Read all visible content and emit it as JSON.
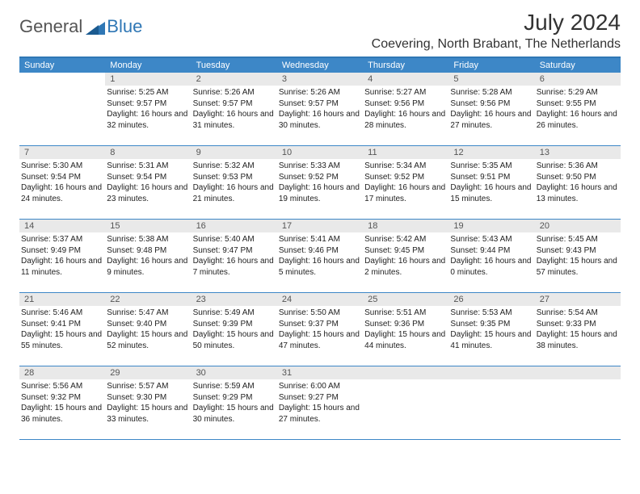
{
  "logo": {
    "general": "General",
    "blue": "Blue"
  },
  "title": {
    "month": "July 2024",
    "location": "Coevering, North Brabant, The Netherlands"
  },
  "colors": {
    "header_bg": "#3d87c7",
    "border": "#2f77b5",
    "daynum_bg": "#e9e9e9",
    "text": "#222222",
    "logo_gray": "#555555",
    "logo_blue": "#2f77b5"
  },
  "day_headers": [
    "Sunday",
    "Monday",
    "Tuesday",
    "Wednesday",
    "Thursday",
    "Friday",
    "Saturday"
  ],
  "weeks": [
    [
      {
        "num": "",
        "sunrise": "",
        "sunset": "",
        "daylight": ""
      },
      {
        "num": "1",
        "sunrise": "Sunrise: 5:25 AM",
        "sunset": "Sunset: 9:57 PM",
        "daylight": "Daylight: 16 hours and 32 minutes."
      },
      {
        "num": "2",
        "sunrise": "Sunrise: 5:26 AM",
        "sunset": "Sunset: 9:57 PM",
        "daylight": "Daylight: 16 hours and 31 minutes."
      },
      {
        "num": "3",
        "sunrise": "Sunrise: 5:26 AM",
        "sunset": "Sunset: 9:57 PM",
        "daylight": "Daylight: 16 hours and 30 minutes."
      },
      {
        "num": "4",
        "sunrise": "Sunrise: 5:27 AM",
        "sunset": "Sunset: 9:56 PM",
        "daylight": "Daylight: 16 hours and 28 minutes."
      },
      {
        "num": "5",
        "sunrise": "Sunrise: 5:28 AM",
        "sunset": "Sunset: 9:56 PM",
        "daylight": "Daylight: 16 hours and 27 minutes."
      },
      {
        "num": "6",
        "sunrise": "Sunrise: 5:29 AM",
        "sunset": "Sunset: 9:55 PM",
        "daylight": "Daylight: 16 hours and 26 minutes."
      }
    ],
    [
      {
        "num": "7",
        "sunrise": "Sunrise: 5:30 AM",
        "sunset": "Sunset: 9:54 PM",
        "daylight": "Daylight: 16 hours and 24 minutes."
      },
      {
        "num": "8",
        "sunrise": "Sunrise: 5:31 AM",
        "sunset": "Sunset: 9:54 PM",
        "daylight": "Daylight: 16 hours and 23 minutes."
      },
      {
        "num": "9",
        "sunrise": "Sunrise: 5:32 AM",
        "sunset": "Sunset: 9:53 PM",
        "daylight": "Daylight: 16 hours and 21 minutes."
      },
      {
        "num": "10",
        "sunrise": "Sunrise: 5:33 AM",
        "sunset": "Sunset: 9:52 PM",
        "daylight": "Daylight: 16 hours and 19 minutes."
      },
      {
        "num": "11",
        "sunrise": "Sunrise: 5:34 AM",
        "sunset": "Sunset: 9:52 PM",
        "daylight": "Daylight: 16 hours and 17 minutes."
      },
      {
        "num": "12",
        "sunrise": "Sunrise: 5:35 AM",
        "sunset": "Sunset: 9:51 PM",
        "daylight": "Daylight: 16 hours and 15 minutes."
      },
      {
        "num": "13",
        "sunrise": "Sunrise: 5:36 AM",
        "sunset": "Sunset: 9:50 PM",
        "daylight": "Daylight: 16 hours and 13 minutes."
      }
    ],
    [
      {
        "num": "14",
        "sunrise": "Sunrise: 5:37 AM",
        "sunset": "Sunset: 9:49 PM",
        "daylight": "Daylight: 16 hours and 11 minutes."
      },
      {
        "num": "15",
        "sunrise": "Sunrise: 5:38 AM",
        "sunset": "Sunset: 9:48 PM",
        "daylight": "Daylight: 16 hours and 9 minutes."
      },
      {
        "num": "16",
        "sunrise": "Sunrise: 5:40 AM",
        "sunset": "Sunset: 9:47 PM",
        "daylight": "Daylight: 16 hours and 7 minutes."
      },
      {
        "num": "17",
        "sunrise": "Sunrise: 5:41 AM",
        "sunset": "Sunset: 9:46 PM",
        "daylight": "Daylight: 16 hours and 5 minutes."
      },
      {
        "num": "18",
        "sunrise": "Sunrise: 5:42 AM",
        "sunset": "Sunset: 9:45 PM",
        "daylight": "Daylight: 16 hours and 2 minutes."
      },
      {
        "num": "19",
        "sunrise": "Sunrise: 5:43 AM",
        "sunset": "Sunset: 9:44 PM",
        "daylight": "Daylight: 16 hours and 0 minutes."
      },
      {
        "num": "20",
        "sunrise": "Sunrise: 5:45 AM",
        "sunset": "Sunset: 9:43 PM",
        "daylight": "Daylight: 15 hours and 57 minutes."
      }
    ],
    [
      {
        "num": "21",
        "sunrise": "Sunrise: 5:46 AM",
        "sunset": "Sunset: 9:41 PM",
        "daylight": "Daylight: 15 hours and 55 minutes."
      },
      {
        "num": "22",
        "sunrise": "Sunrise: 5:47 AM",
        "sunset": "Sunset: 9:40 PM",
        "daylight": "Daylight: 15 hours and 52 minutes."
      },
      {
        "num": "23",
        "sunrise": "Sunrise: 5:49 AM",
        "sunset": "Sunset: 9:39 PM",
        "daylight": "Daylight: 15 hours and 50 minutes."
      },
      {
        "num": "24",
        "sunrise": "Sunrise: 5:50 AM",
        "sunset": "Sunset: 9:37 PM",
        "daylight": "Daylight: 15 hours and 47 minutes."
      },
      {
        "num": "25",
        "sunrise": "Sunrise: 5:51 AM",
        "sunset": "Sunset: 9:36 PM",
        "daylight": "Daylight: 15 hours and 44 minutes."
      },
      {
        "num": "26",
        "sunrise": "Sunrise: 5:53 AM",
        "sunset": "Sunset: 9:35 PM",
        "daylight": "Daylight: 15 hours and 41 minutes."
      },
      {
        "num": "27",
        "sunrise": "Sunrise: 5:54 AM",
        "sunset": "Sunset: 9:33 PM",
        "daylight": "Daylight: 15 hours and 38 minutes."
      }
    ],
    [
      {
        "num": "28",
        "sunrise": "Sunrise: 5:56 AM",
        "sunset": "Sunset: 9:32 PM",
        "daylight": "Daylight: 15 hours and 36 minutes."
      },
      {
        "num": "29",
        "sunrise": "Sunrise: 5:57 AM",
        "sunset": "Sunset: 9:30 PM",
        "daylight": "Daylight: 15 hours and 33 minutes."
      },
      {
        "num": "30",
        "sunrise": "Sunrise: 5:59 AM",
        "sunset": "Sunset: 9:29 PM",
        "daylight": "Daylight: 15 hours and 30 minutes."
      },
      {
        "num": "31",
        "sunrise": "Sunrise: 6:00 AM",
        "sunset": "Sunset: 9:27 PM",
        "daylight": "Daylight: 15 hours and 27 minutes."
      },
      {
        "num": "",
        "sunrise": "",
        "sunset": "",
        "daylight": ""
      },
      {
        "num": "",
        "sunrise": "",
        "sunset": "",
        "daylight": ""
      },
      {
        "num": "",
        "sunrise": "",
        "sunset": "",
        "daylight": ""
      }
    ]
  ]
}
